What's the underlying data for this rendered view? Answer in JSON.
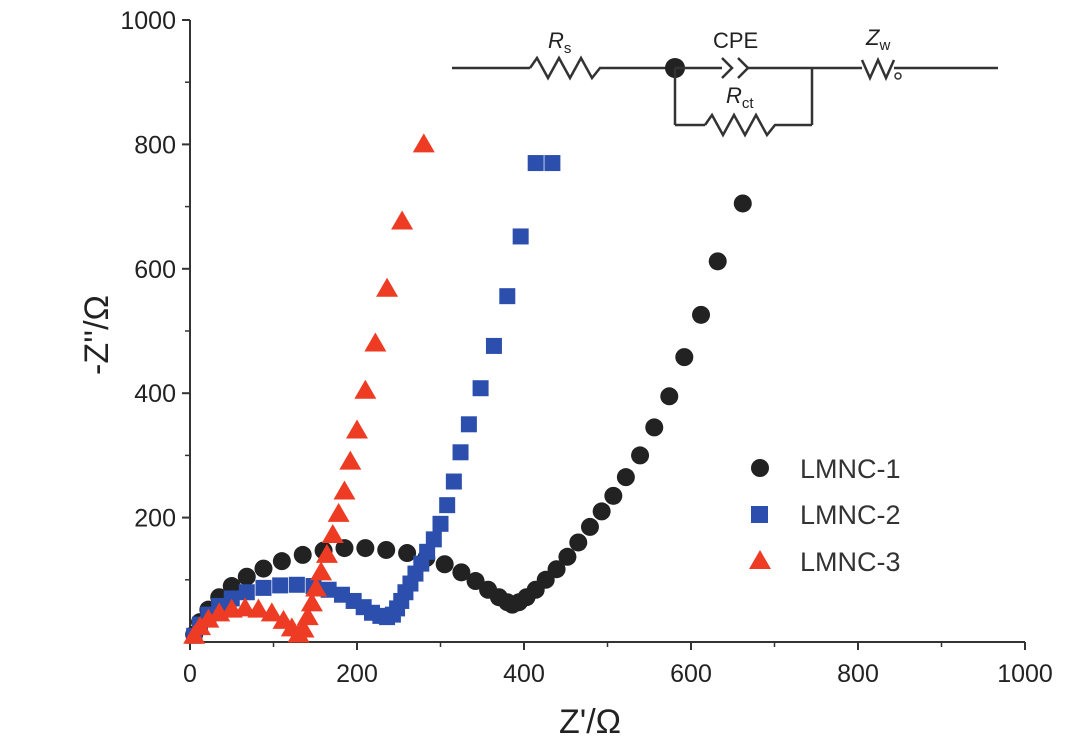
{
  "chart_data": {
    "type": "scatter",
    "title": "",
    "xlabel": "Z'/Ω",
    "ylabel": "-Z''/Ω",
    "xlim": [
      0,
      1000
    ],
    "ylim": [
      0,
      1000
    ],
    "xticks": [
      0,
      200,
      400,
      600,
      800,
      1000
    ],
    "yticks": [
      200,
      400,
      600,
      800,
      1000
    ],
    "grid": false,
    "legend_position": "center-right",
    "series": [
      {
        "name": "LMNC-1",
        "marker": "circle",
        "color": "#222222",
        "x": [
          5,
          12,
          22,
          35,
          50,
          68,
          88,
          110,
          135,
          160,
          185,
          210,
          235,
          260,
          283,
          305,
          325,
          342,
          357,
          370,
          380,
          386,
          394,
          403,
          414,
          426,
          439,
          452,
          465,
          479,
          493,
          507,
          522,
          539,
          556,
          574,
          592,
          612,
          632,
          662
        ],
        "y": [
          12,
          32,
          52,
          72,
          90,
          105,
          118,
          130,
          140,
          147,
          151,
          151,
          148,
          143,
          135,
          125,
          112,
          98,
          84,
          72,
          64,
          60,
          64,
          72,
          84,
          100,
          117,
          137,
          160,
          185,
          210,
          235,
          265,
          300,
          345,
          395,
          458,
          526,
          612,
          705
        ]
      },
      {
        "name": "LMNC-2",
        "marker": "square",
        "color": "#2c4fae",
        "x": [
          5,
          12,
          22,
          35,
          50,
          68,
          88,
          108,
          128,
          148,
          166,
          182,
          196,
          208,
          218,
          228,
          236,
          243,
          248,
          253,
          258,
          264,
          270,
          277,
          284,
          292,
          300,
          308,
          316,
          324,
          334,
          348,
          364,
          380,
          396,
          414,
          434
        ],
        "y": [
          10,
          28,
          44,
          58,
          70,
          80,
          87,
          91,
          92,
          90,
          84,
          76,
          66,
          56,
          47,
          42,
          40,
          44,
          54,
          66,
          80,
          94,
          110,
          126,
          145,
          165,
          190,
          220,
          258,
          305,
          350,
          408,
          476,
          556,
          652,
          770,
          770
        ]
      },
      {
        "name": "LMNC-3",
        "marker": "triangle",
        "color": "#ee3b24",
        "x": [
          5,
          12,
          22,
          35,
          50,
          66,
          82,
          98,
          112,
          122,
          130,
          136,
          141,
          146,
          151,
          157,
          164,
          171,
          178,
          185,
          192,
          200,
          210,
          222,
          236,
          254,
          280
        ],
        "y": [
          10,
          24,
          36,
          46,
          52,
          54,
          52,
          46,
          34,
          22,
          12,
          20,
          40,
          62,
          86,
          112,
          140,
          172,
          206,
          242,
          290,
          340,
          404,
          480,
          568,
          676,
          800
        ]
      }
    ]
  },
  "circuit": {
    "rs_main": "R",
    "rs_sub": "s",
    "cpe": "CPE",
    "rct_main": "R",
    "rct_sub": "ct",
    "zw_main": "Z",
    "zw_sub": "w"
  }
}
